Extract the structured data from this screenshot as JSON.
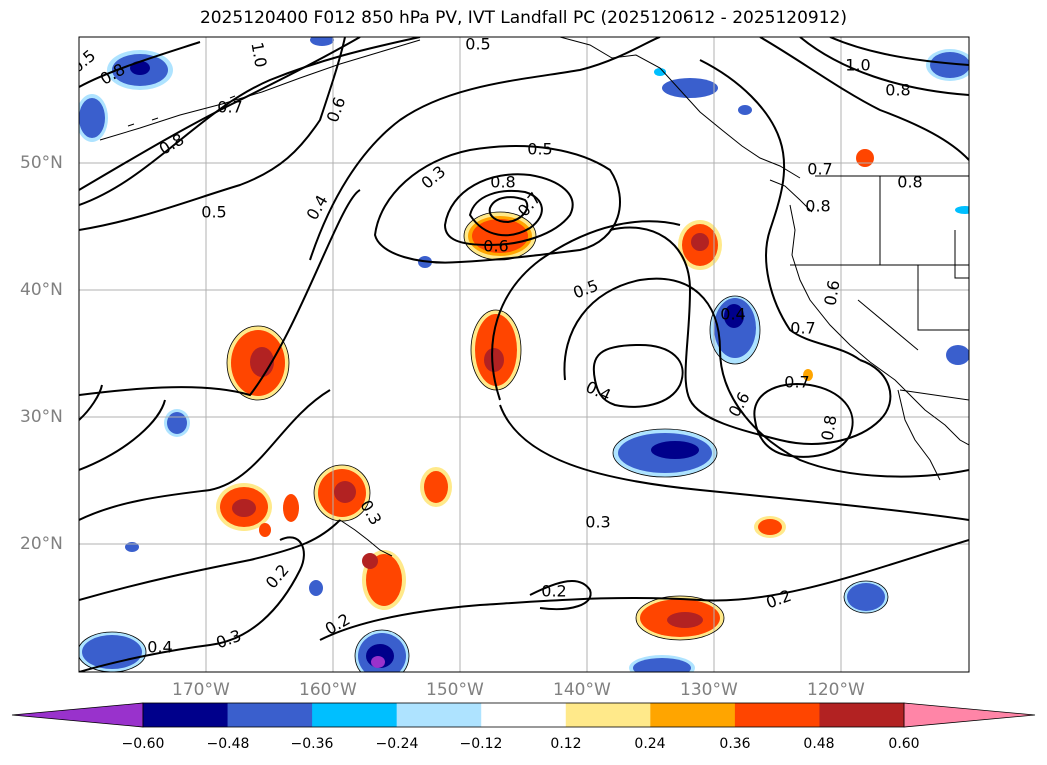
{
  "title": "2025120400 F012 850 hPa PV, IVT Landfall PC (2025120612 - 2025120912)",
  "map": {
    "lat_labels": [
      "50°N",
      "40°N",
      "30°N",
      "20°N"
    ],
    "lon_labels": [
      "170°W",
      "160°W",
      "150°W",
      "140°W",
      "130°W",
      "120°W"
    ],
    "lon_range": [
      -180,
      -110
    ],
    "lat_range": [
      10,
      60
    ],
    "contour_labels": [
      "0.5",
      "1.0",
      "0.8",
      "0.7",
      "0.6",
      "0.8",
      "0.5",
      "0.3",
      "0.8",
      "0.5",
      "0.4",
      "0.7",
      "0.6",
      "0.5",
      "0.4",
      "0.6",
      "0.7",
      "0.8",
      "0.3",
      "0.3",
      "0.2",
      "0.2",
      "0.2",
      "0.2",
      "0.3",
      "1.0",
      "0.8",
      "0.7",
      "0.8",
      "0.8",
      "0.6",
      "0.7",
      "0.4",
      "0.5",
      "0.4"
    ],
    "colorbar": {
      "ticks": [
        "−0.60",
        "−0.48",
        "−0.36",
        "−0.24",
        "−0.12",
        "0.12",
        "0.24",
        "0.36",
        "0.48",
        "0.60"
      ],
      "colors": [
        "#9932cc",
        "#00008b",
        "#3a5fcd",
        "#00bfff",
        "#aee3ff",
        "#ffffff",
        "#ffe98a",
        "#ffa500",
        "#ff4500",
        "#b22222",
        "#ff85a7"
      ]
    }
  }
}
